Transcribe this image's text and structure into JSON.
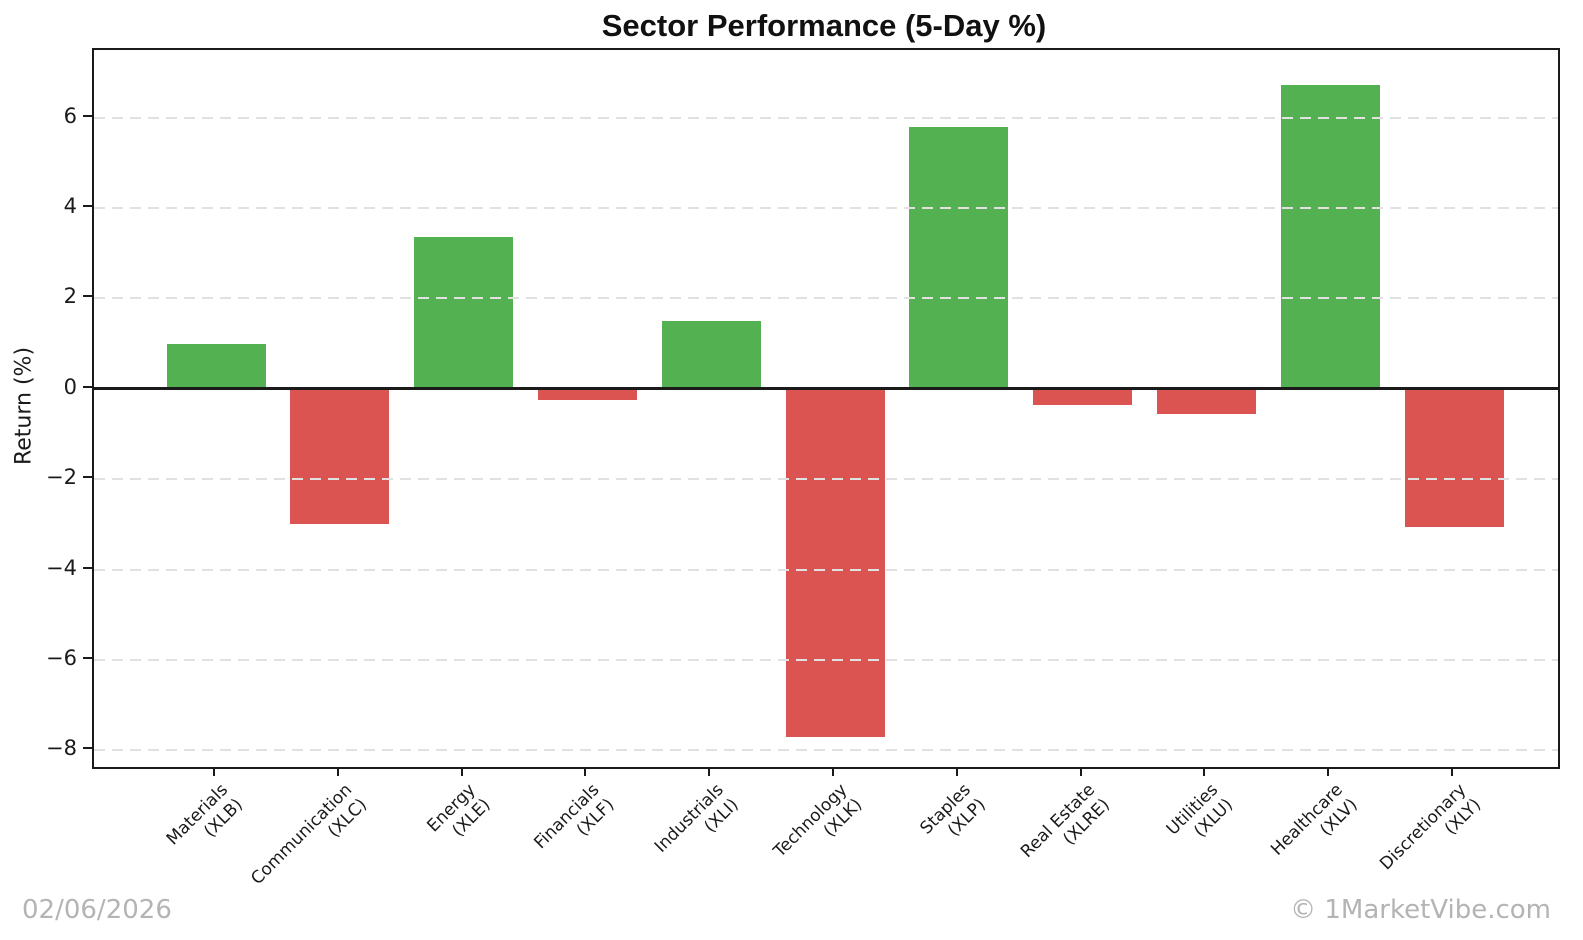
{
  "title": "Sector Performance (5-Day %)",
  "footer": {
    "date": "02/06/2026",
    "watermark": "© 1MarketVibe.com"
  },
  "chart_data": {
    "type": "bar",
    "title": "Sector Performance (5-Day %)",
    "xlabel": "",
    "ylabel": "Return (%)",
    "categories": [
      {
        "label": "Materials",
        "ticker": "(XLB)"
      },
      {
        "label": "Communication",
        "ticker": "(XLC)"
      },
      {
        "label": "Energy",
        "ticker": "(XLE)"
      },
      {
        "label": "Financials",
        "ticker": "(XLF)"
      },
      {
        "label": "Industrials",
        "ticker": "(XLI)"
      },
      {
        "label": "Technology",
        "ticker": "(XLK)"
      },
      {
        "label": "Staples",
        "ticker": "(XLP)"
      },
      {
        "label": "Real Estate",
        "ticker": "(XLRE)"
      },
      {
        "label": "Utilities",
        "ticker": "(XLU)"
      },
      {
        "label": "Healthcare",
        "ticker": "(XLV)"
      },
      {
        "label": "Discretionary",
        "ticker": "(XLY)"
      }
    ],
    "values": [
      1.0,
      -3.0,
      3.37,
      -0.25,
      1.5,
      -7.7,
      5.8,
      -0.35,
      -0.55,
      6.72,
      -3.05
    ],
    "colors": {
      "positive": "#53b152",
      "negative": "#dc5452",
      "grid": "#e1e1e1",
      "axis": "#1a1a1a",
      "footer_text": "#b4b4b4"
    },
    "ylim": [
      -8.37,
      7.5
    ],
    "yticks": [
      -8,
      -6,
      -4,
      -2,
      0,
      2,
      4,
      6
    ],
    "grid": "horizontal-dashed",
    "legend": "none",
    "zero_line": true
  }
}
